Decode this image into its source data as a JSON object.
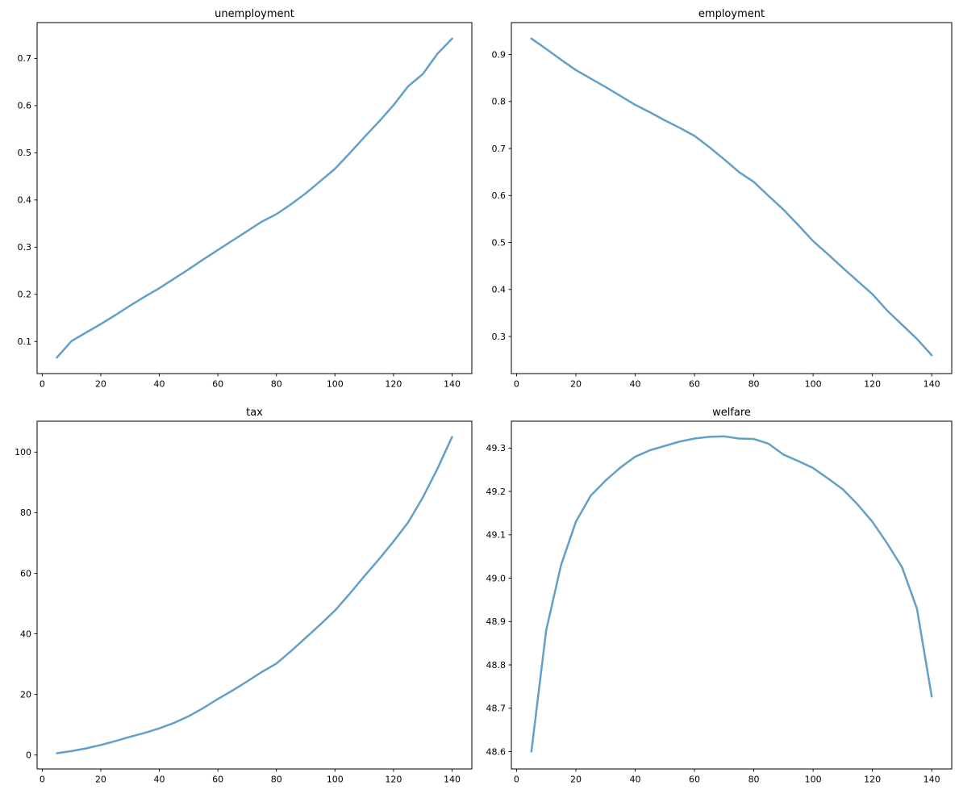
{
  "figure": {
    "background": "#ffffff",
    "spine_color": "#000000",
    "tick_color": "#000000"
  },
  "chart_data": [
    {
      "type": "line",
      "title": "unemployment",
      "xlabel": "",
      "ylabel": "",
      "grid": false,
      "legend": null,
      "line_color": "#62a0ca",
      "line_width": 2.5,
      "xlim": [
        -1.75,
        146.75
      ],
      "ylim": [
        0.032,
        0.776
      ],
      "xticks": [
        0,
        20,
        40,
        60,
        80,
        100,
        120,
        140
      ],
      "xtick_labels": [
        "0",
        "20",
        "40",
        "60",
        "80",
        "100",
        "120",
        "140"
      ],
      "yticks": [
        0.1,
        0.2,
        0.3,
        0.4,
        0.5,
        0.6,
        0.7
      ],
      "ytick_labels": [
        "0.1",
        "0.2",
        "0.3",
        "0.4",
        "0.5",
        "0.6",
        "0.7"
      ],
      "x": [
        5,
        10,
        15,
        20,
        25,
        30,
        35,
        40,
        45,
        50,
        55,
        60,
        65,
        70,
        75,
        80,
        85,
        90,
        95,
        100,
        105,
        110,
        115,
        120,
        125,
        130,
        135,
        140
      ],
      "y": [
        0.066,
        0.101,
        0.119,
        0.137,
        0.156,
        0.176,
        0.195,
        0.213,
        0.233,
        0.253,
        0.274,
        0.294,
        0.314,
        0.334,
        0.354,
        0.37,
        0.391,
        0.414,
        0.44,
        0.466,
        0.499,
        0.533,
        0.566,
        0.601,
        0.641,
        0.667,
        0.71,
        0.742
      ]
    },
    {
      "type": "line",
      "title": "employment",
      "xlabel": "",
      "ylabel": "",
      "grid": false,
      "legend": null,
      "line_color": "#62a0ca",
      "line_width": 2.5,
      "xlim": [
        -1.75,
        146.75
      ],
      "ylim": [
        0.221,
        0.968
      ],
      "xticks": [
        0,
        20,
        40,
        60,
        80,
        100,
        120,
        140
      ],
      "xtick_labels": [
        "0",
        "20",
        "40",
        "60",
        "80",
        "100",
        "120",
        "140"
      ],
      "yticks": [
        0.3,
        0.4,
        0.5,
        0.6,
        0.7,
        0.8,
        0.9
      ],
      "ytick_labels": [
        "0.3",
        "0.4",
        "0.5",
        "0.6",
        "0.7",
        "0.8",
        "0.9"
      ],
      "x": [
        5,
        10,
        15,
        20,
        25,
        30,
        35,
        40,
        45,
        50,
        55,
        60,
        65,
        70,
        75,
        80,
        85,
        90,
        95,
        100,
        105,
        110,
        115,
        120,
        125,
        130,
        135,
        140
      ],
      "y": [
        0.934,
        0.912,
        0.889,
        0.867,
        0.849,
        0.831,
        0.812,
        0.793,
        0.777,
        0.76,
        0.744,
        0.727,
        0.703,
        0.677,
        0.65,
        0.629,
        0.599,
        0.57,
        0.537,
        0.503,
        0.475,
        0.446,
        0.418,
        0.39,
        0.355,
        0.325,
        0.295,
        0.26
      ]
    },
    {
      "type": "line",
      "title": "tax",
      "xlabel": "",
      "ylabel": "",
      "grid": false,
      "legend": null,
      "line_color": "#62a0ca",
      "line_width": 2.5,
      "xlim": [
        -1.75,
        146.75
      ],
      "ylim": [
        -4.6,
        110.2
      ],
      "xticks": [
        0,
        20,
        40,
        60,
        80,
        100,
        120,
        140
      ],
      "xtick_labels": [
        "0",
        "20",
        "40",
        "60",
        "80",
        "100",
        "120",
        "140"
      ],
      "yticks": [
        0,
        20,
        40,
        60,
        80,
        100
      ],
      "ytick_labels": [
        "0",
        "20",
        "40",
        "60",
        "80",
        "100"
      ],
      "x": [
        5,
        10,
        15,
        20,
        25,
        30,
        35,
        40,
        45,
        50,
        55,
        60,
        65,
        70,
        75,
        80,
        85,
        90,
        95,
        100,
        105,
        110,
        115,
        120,
        125,
        130,
        135,
        140
      ],
      "y": [
        0.6,
        1.3,
        2.2,
        3.3,
        4.6,
        6.0,
        7.3,
        8.8,
        10.6,
        12.8,
        15.5,
        18.5,
        21.3,
        24.3,
        27.4,
        30.2,
        34.3,
        38.7,
        43.1,
        47.7,
        53.2,
        59.0,
        64.6,
        70.5,
        76.8,
        85.0,
        94.5,
        105.0
      ]
    },
    {
      "type": "line",
      "title": "welfare",
      "xlabel": "",
      "ylabel": "",
      "grid": false,
      "legend": null,
      "line_color": "#62a0ca",
      "line_width": 2.5,
      "xlim": [
        -1.75,
        146.75
      ],
      "ylim": [
        48.56,
        49.362
      ],
      "xticks": [
        0,
        20,
        40,
        60,
        80,
        100,
        120,
        140
      ],
      "xtick_labels": [
        "0",
        "20",
        "40",
        "60",
        "80",
        "100",
        "120",
        "140"
      ],
      "yticks": [
        48.6,
        48.7,
        48.8,
        48.9,
        49.0,
        49.1,
        49.2,
        49.3
      ],
      "ytick_labels": [
        "48.6",
        "48.7",
        "48.8",
        "48.9",
        "49.0",
        "49.1",
        "49.2",
        "49.3"
      ],
      "x": [
        5,
        10,
        15,
        20,
        25,
        30,
        35,
        40,
        45,
        50,
        55,
        60,
        65,
        70,
        75,
        80,
        85,
        90,
        95,
        100,
        105,
        110,
        115,
        120,
        125,
        130,
        135,
        140
      ],
      "y": [
        48.6,
        48.88,
        49.03,
        49.13,
        49.19,
        49.225,
        49.255,
        49.28,
        49.295,
        49.305,
        49.315,
        49.322,
        49.326,
        49.327,
        49.322,
        49.321,
        49.31,
        49.285,
        49.27,
        49.254,
        49.23,
        49.205,
        49.17,
        49.13,
        49.08,
        49.025,
        48.93,
        48.727
      ]
    }
  ]
}
